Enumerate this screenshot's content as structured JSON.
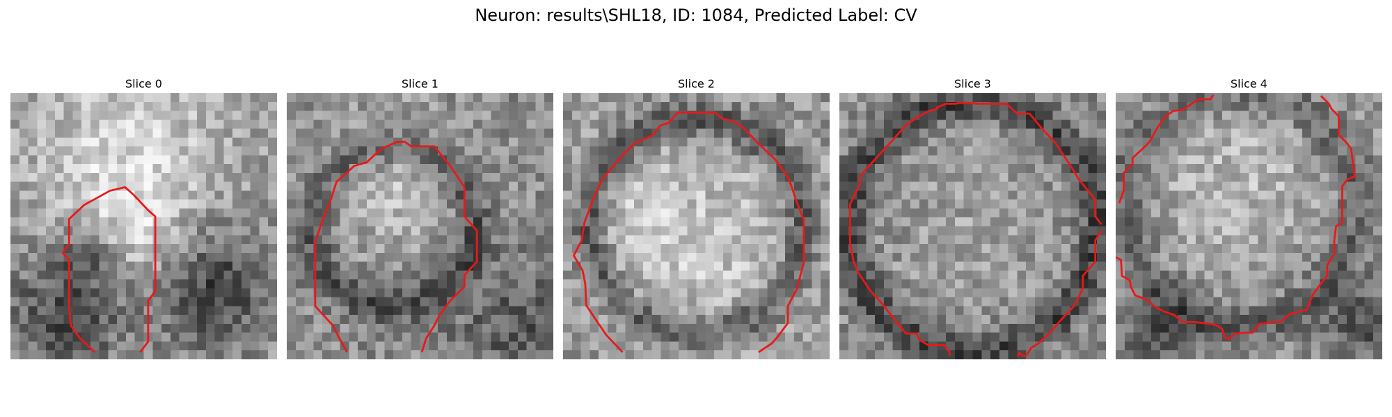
{
  "figure": {
    "title": "Neuron: results\\SHL18, ID: 1084, Predicted Label: CV",
    "contour_color": "#e8191a"
  },
  "slices": [
    {
      "title": "Slice 0"
    },
    {
      "title": "Slice 1"
    },
    {
      "title": "Slice 2"
    },
    {
      "title": "Slice 3"
    },
    {
      "title": "Slice 4"
    }
  ]
}
